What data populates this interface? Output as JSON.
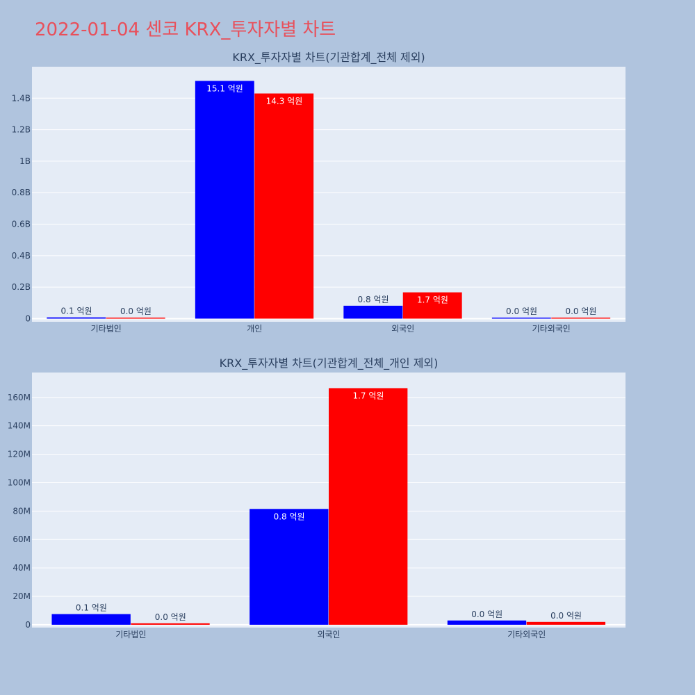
{
  "page": {
    "title": "2022-01-04 센코 KRX_투자자별 차트"
  },
  "chart_data": [
    {
      "type": "bar",
      "title": "KRX_투자자별 차트(기관합계_전체 제외)",
      "categories": [
        "기타법인",
        "개인",
        "외국인",
        "기타외국인"
      ],
      "series": [
        {
          "color": "#0000ff",
          "values": [
            8000000,
            1510000000,
            82000000,
            3000000
          ],
          "labels": [
            "0.1 억원",
            "15.1 억원",
            "0.8 억원",
            "0.0 억원"
          ]
        },
        {
          "color": "#ff0000",
          "values": [
            1000000,
            1430000000,
            167000000,
            2000000
          ],
          "labels": [
            "0.0 억원",
            "14.3 억원",
            "1.7 억원",
            "0.0 억원"
          ]
        }
      ],
      "ylim": [
        -20000000,
        1600000000
      ],
      "yticks": [
        0,
        200000000,
        400000000,
        600000000,
        800000000,
        1000000000,
        1200000000,
        1400000000
      ],
      "ytick_labels": [
        "0",
        "0.2B",
        "0.4B",
        "0.6B",
        "0.8B",
        "1B",
        "1.2B",
        "1.4B"
      ],
      "grid": true
    },
    {
      "type": "bar",
      "title": "KRX_투자자별 차트(기관합계_전체_개인 제외)",
      "categories": [
        "기타법인",
        "외국인",
        "기타외국인"
      ],
      "series": [
        {
          "color": "#0000ff",
          "values": [
            7500000,
            81500000,
            3000000
          ],
          "labels": [
            "0.1 억원",
            "0.8 억원",
            "0.0 억원"
          ]
        },
        {
          "color": "#ff0000",
          "values": [
            1000000,
            166500000,
            2000000
          ],
          "labels": [
            "0.0 억원",
            "1.7 억원",
            "0.0 억원"
          ]
        }
      ],
      "ylim": [
        -2000000,
        177500000
      ],
      "yticks": [
        0,
        20000000,
        40000000,
        60000000,
        80000000,
        100000000,
        120000000,
        140000000,
        160000000
      ],
      "ytick_labels": [
        "0",
        "20M",
        "40M",
        "60M",
        "80M",
        "100M",
        "120M",
        "140M",
        "160M"
      ],
      "grid": true
    }
  ]
}
